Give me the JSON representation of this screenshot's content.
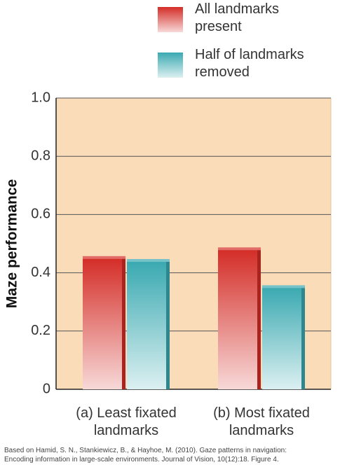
{
  "chart_data": {
    "type": "bar",
    "y_label": "Maze performance",
    "categories": [
      "(a) Least fixated\nlandmarks",
      "(b) Most fixated\nlandmarks"
    ],
    "series": [
      {
        "name": "All landmarks\npresent",
        "color": "#d42d27",
        "values": [
          0.45,
          0.48
        ]
      },
      {
        "name": "Half of landmarks\nremoved",
        "color": "#3aa9b1",
        "values": [
          0.44,
          0.35
        ]
      }
    ],
    "ylim": [
      0,
      1.0
    ],
    "yticks": [
      0,
      0.2,
      0.4,
      0.6,
      0.8,
      {
        "value": 1.0,
        "label": "1.0"
      }
    ],
    "grid": true,
    "source": "Based on Hamid, S. N., Stankiewicz, B., & Hayhoe, M. (2010). Gaze patterns in navigation:\nEncoding information in large-scale environments. Journal of Vision, 10(12):18. Figure 4."
  }
}
